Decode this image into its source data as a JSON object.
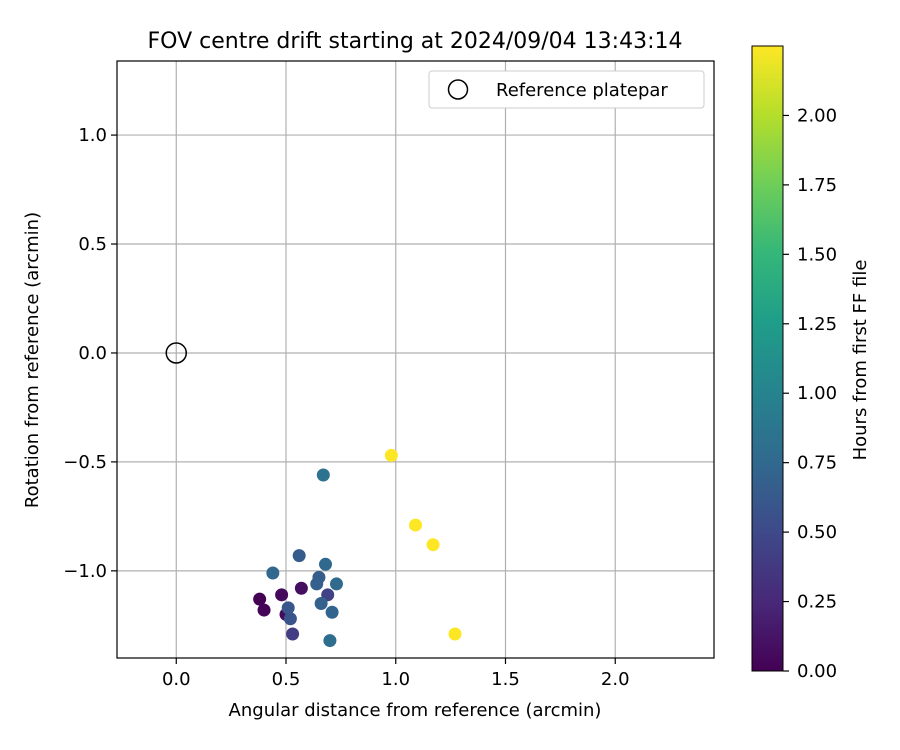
{
  "chart_data": {
    "type": "scatter",
    "title": "FOV centre drift starting at 2024/09/04 13:43:14",
    "xlabel": "Angular distance from reference (arcmin)",
    "ylabel": "Rotation from reference (arcmin)",
    "xlim": [
      -0.27,
      2.45
    ],
    "ylim": [
      -1.4,
      1.34
    ],
    "xticks": [
      0.0,
      0.5,
      1.0,
      1.5,
      2.0
    ],
    "xtick_labels": [
      "0.0",
      "0.5",
      "1.0",
      "1.5",
      "2.0"
    ],
    "yticks": [
      -1.0,
      -0.5,
      0.0,
      0.5,
      1.0
    ],
    "ytick_labels": [
      "−1.0",
      "−0.5",
      "0.0",
      "0.5",
      "1.0"
    ],
    "grid": true,
    "legend": {
      "label": "Reference platepar",
      "placement": "top-right",
      "marker": "open-circle"
    },
    "reference_point": {
      "x": 0.0,
      "y": 0.0
    },
    "colormap": "viridis",
    "points": [
      {
        "x": 0.38,
        "y": -1.13,
        "t": 0.0
      },
      {
        "x": 0.4,
        "y": -1.18,
        "t": 0.02
      },
      {
        "x": 0.48,
        "y": -1.11,
        "t": 0.05
      },
      {
        "x": 0.5,
        "y": -1.2,
        "t": 0.07
      },
      {
        "x": 0.57,
        "y": -1.08,
        "t": 0.09
      },
      {
        "x": 0.53,
        "y": -1.29,
        "t": 0.4
      },
      {
        "x": 0.69,
        "y": -1.11,
        "t": 0.45
      },
      {
        "x": 0.52,
        "y": -1.22,
        "t": 0.6
      },
      {
        "x": 0.51,
        "y": -1.17,
        "t": 0.62
      },
      {
        "x": 0.56,
        "y": -0.93,
        "t": 0.65
      },
      {
        "x": 0.65,
        "y": -1.03,
        "t": 0.66
      },
      {
        "x": 0.64,
        "y": -1.06,
        "t": 0.68
      },
      {
        "x": 0.66,
        "y": -1.15,
        "t": 0.7
      },
      {
        "x": 0.71,
        "y": -1.19,
        "t": 0.72
      },
      {
        "x": 0.44,
        "y": -1.01,
        "t": 0.74
      },
      {
        "x": 0.68,
        "y": -0.97,
        "t": 0.76
      },
      {
        "x": 0.73,
        "y": -1.06,
        "t": 0.78
      },
      {
        "x": 0.7,
        "y": -1.32,
        "t": 0.8
      },
      {
        "x": 0.67,
        "y": -0.56,
        "t": 0.85
      },
      {
        "x": 0.98,
        "y": -0.47,
        "t": 2.25
      },
      {
        "x": 1.09,
        "y": -0.79,
        "t": 2.25
      },
      {
        "x": 1.17,
        "y": -0.88,
        "t": 2.25
      },
      {
        "x": 1.27,
        "y": -1.29,
        "t": 2.25
      }
    ],
    "colorbar": {
      "label": "Hours from first FF file",
      "min": 0.0,
      "max": 2.25,
      "ticks": [
        0.0,
        0.25,
        0.5,
        0.75,
        1.0,
        1.25,
        1.5,
        1.75,
        2.0
      ],
      "tick_labels": [
        "0.00",
        "0.25",
        "0.50",
        "0.75",
        "1.00",
        "1.25",
        "1.50",
        "1.75",
        "2.00"
      ]
    }
  }
}
